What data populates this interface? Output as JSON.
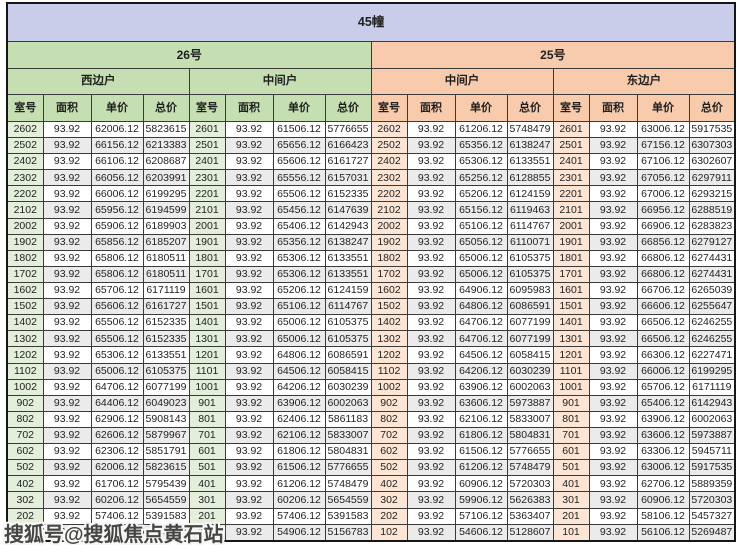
{
  "title": "45幢",
  "columns": [
    "室号",
    "面积",
    "单价",
    "总价"
  ],
  "watermark": {
    "text": "搜狐号@搜狐焦点黄石站"
  },
  "colors": {
    "title_bar": "#c9cde9",
    "building_26_header": "#c5dfb3",
    "building_26_room_cell": "#e3efda",
    "building_25_header": "#f8cbad",
    "building_25_room_cell": "#fce5d5",
    "alt_row": "#ebebeb",
    "grid_line": "#3a3a3a"
  },
  "buildings": [
    {
      "name": "26号",
      "theme": "green",
      "units": [
        {
          "name": "西边户",
          "rows": [
            [
              "2602",
              "93.92",
              "62006.12",
              "5823615"
            ],
            [
              "2502",
              "93.92",
              "66156.12",
              "6213383"
            ],
            [
              "2402",
              "93.92",
              "66106.12",
              "6208687"
            ],
            [
              "2302",
              "93.92",
              "66056.12",
              "6203991"
            ],
            [
              "2202",
              "93.92",
              "66006.12",
              "6199295"
            ],
            [
              "2102",
              "93.92",
              "65956.12",
              "6194599"
            ],
            [
              "2002",
              "93.92",
              "65906.12",
              "6189903"
            ],
            [
              "1902",
              "93.92",
              "65856.12",
              "6185207"
            ],
            [
              "1802",
              "93.92",
              "65806.12",
              "6180511"
            ],
            [
              "1702",
              "93.92",
              "65806.12",
              "6180511"
            ],
            [
              "1602",
              "93.92",
              "65706.12",
              "6171119"
            ],
            [
              "1502",
              "93.92",
              "65606.12",
              "6161727"
            ],
            [
              "1402",
              "93.92",
              "65506.12",
              "6152335"
            ],
            [
              "1302",
              "93.92",
              "65506.12",
              "6152335"
            ],
            [
              "1202",
              "93.92",
              "65306.12",
              "6133551"
            ],
            [
              "1102",
              "93.92",
              "65006.12",
              "6105375"
            ],
            [
              "1002",
              "93.92",
              "64706.12",
              "6077199"
            ],
            [
              "902",
              "93.92",
              "64406.12",
              "6049023"
            ],
            [
              "802",
              "93.92",
              "62906.12",
              "5908143"
            ],
            [
              "702",
              "93.92",
              "62606.12",
              "5879967"
            ],
            [
              "602",
              "93.92",
              "62306.12",
              "5851791"
            ],
            [
              "502",
              "93.92",
              "62006.12",
              "5823615"
            ],
            [
              "402",
              "93.92",
              "61706.12",
              "5795439"
            ],
            [
              "302",
              "93.92",
              "60206.12",
              "5654559"
            ],
            [
              "202",
              "93.92",
              "57406.12",
              "5391583"
            ],
            [
              "102",
              "93.92",
              "55406.12",
              "5203743"
            ]
          ]
        },
        {
          "name": "中间户",
          "rows": [
            [
              "2601",
              "93.92",
              "61506.12",
              "5776655"
            ],
            [
              "2501",
              "93.92",
              "65656.12",
              "6166423"
            ],
            [
              "2401",
              "93.92",
              "65606.12",
              "6161727"
            ],
            [
              "2301",
              "93.92",
              "65556.12",
              "6157031"
            ],
            [
              "2201",
              "93.92",
              "65506.12",
              "6152335"
            ],
            [
              "2101",
              "93.92",
              "65456.12",
              "6147639"
            ],
            [
              "2001",
              "93.92",
              "65406.12",
              "6142943"
            ],
            [
              "1901",
              "93.92",
              "65356.12",
              "6138247"
            ],
            [
              "1801",
              "93.92",
              "65306.12",
              "6133551"
            ],
            [
              "1701",
              "93.92",
              "65306.12",
              "6133551"
            ],
            [
              "1601",
              "93.92",
              "65206.12",
              "6124159"
            ],
            [
              "1501",
              "93.92",
              "65106.12",
              "6114767"
            ],
            [
              "1401",
              "93.92",
              "65006.12",
              "6105375"
            ],
            [
              "1301",
              "93.92",
              "65006.12",
              "6105375"
            ],
            [
              "1201",
              "93.92",
              "64806.12",
              "6086591"
            ],
            [
              "1101",
              "93.92",
              "64506.12",
              "6058415"
            ],
            [
              "1001",
              "93.92",
              "64206.12",
              "6030239"
            ],
            [
              "901",
              "93.92",
              "63906.12",
              "6002063"
            ],
            [
              "801",
              "93.92",
              "62406.12",
              "5861183"
            ],
            [
              "701",
              "93.92",
              "62106.12",
              "5833007"
            ],
            [
              "601",
              "93.92",
              "61806.12",
              "5804831"
            ],
            [
              "501",
              "93.92",
              "61506.12",
              "5776655"
            ],
            [
              "401",
              "93.92",
              "61206.12",
              "5748479"
            ],
            [
              "301",
              "93.92",
              "60206.12",
              "5654559"
            ],
            [
              "201",
              "93.92",
              "57406.12",
              "5391583"
            ],
            [
              "101",
              "93.92",
              "54906.12",
              "5156783"
            ]
          ]
        }
      ]
    },
    {
      "name": "25号",
      "theme": "peach",
      "units": [
        {
          "name": "中间户",
          "rows": [
            [
              "2602",
              "93.92",
              "61206.12",
              "5748479"
            ],
            [
              "2502",
              "93.92",
              "65356.12",
              "6138247"
            ],
            [
              "2402",
              "93.92",
              "65306.12",
              "6133551"
            ],
            [
              "2302",
              "93.92",
              "65256.12",
              "6128855"
            ],
            [
              "2202",
              "93.92",
              "65206.12",
              "6124159"
            ],
            [
              "2102",
              "93.92",
              "65156.12",
              "6119463"
            ],
            [
              "2002",
              "93.92",
              "65106.12",
              "6114767"
            ],
            [
              "1902",
              "93.92",
              "65056.12",
              "6110071"
            ],
            [
              "1802",
              "93.92",
              "65006.12",
              "6105375"
            ],
            [
              "1702",
              "93.92",
              "65006.12",
              "6105375"
            ],
            [
              "1602",
              "93.92",
              "64906.12",
              "6095983"
            ],
            [
              "1502",
              "93.92",
              "64806.12",
              "6086591"
            ],
            [
              "1402",
              "93.92",
              "64706.12",
              "6077199"
            ],
            [
              "1302",
              "93.92",
              "64706.12",
              "6077199"
            ],
            [
              "1202",
              "93.92",
              "64506.12",
              "6058415"
            ],
            [
              "1102",
              "93.92",
              "64206.12",
              "6030239"
            ],
            [
              "1002",
              "93.92",
              "63906.12",
              "6002063"
            ],
            [
              "902",
              "93.92",
              "63606.12",
              "5973887"
            ],
            [
              "802",
              "93.92",
              "62106.12",
              "5833007"
            ],
            [
              "702",
              "93.92",
              "61806.12",
              "5804831"
            ],
            [
              "602",
              "93.92",
              "61506.12",
              "5776655"
            ],
            [
              "502",
              "93.92",
              "61206.12",
              "5748479"
            ],
            [
              "402",
              "93.92",
              "60906.12",
              "5720303"
            ],
            [
              "302",
              "93.92",
              "59906.12",
              "5626383"
            ],
            [
              "202",
              "93.92",
              "57106.12",
              "5363407"
            ],
            [
              "102",
              "93.92",
              "54606.12",
              "5128607"
            ]
          ]
        },
        {
          "name": "东边户",
          "rows": [
            [
              "2601",
              "93.92",
              "63006.12",
              "5917535"
            ],
            [
              "2501",
              "93.92",
              "67156.12",
              "6307303"
            ],
            [
              "2401",
              "93.92",
              "67106.12",
              "6302607"
            ],
            [
              "2301",
              "93.92",
              "67056.12",
              "6297911"
            ],
            [
              "2201",
              "93.92",
              "67006.12",
              "6293215"
            ],
            [
              "2101",
              "93.92",
              "66956.12",
              "6288519"
            ],
            [
              "2001",
              "93.92",
              "66906.12",
              "6283823"
            ],
            [
              "1901",
              "93.92",
              "66856.12",
              "6279127"
            ],
            [
              "1801",
              "93.92",
              "66806.12",
              "6274431"
            ],
            [
              "1701",
              "93.92",
              "66806.12",
              "6274431"
            ],
            [
              "1601",
              "93.92",
              "66706.12",
              "6265039"
            ],
            [
              "1501",
              "93.92",
              "66606.12",
              "6255647"
            ],
            [
              "1401",
              "93.92",
              "66506.12",
              "6246255"
            ],
            [
              "1301",
              "93.92",
              "66506.12",
              "6246255"
            ],
            [
              "1201",
              "93.92",
              "66306.12",
              "6227471"
            ],
            [
              "1101",
              "93.92",
              "66006.12",
              "6199295"
            ],
            [
              "1001",
              "93.92",
              "65706.12",
              "6171119"
            ],
            [
              "901",
              "93.92",
              "65406.12",
              "6142943"
            ],
            [
              "801",
              "93.92",
              "63906.12",
              "6002063"
            ],
            [
              "701",
              "93.92",
              "63606.12",
              "5973887"
            ],
            [
              "601",
              "93.92",
              "63306.12",
              "5945711"
            ],
            [
              "501",
              "93.92",
              "63006.12",
              "5917535"
            ],
            [
              "401",
              "93.92",
              "62706.12",
              "5889359"
            ],
            [
              "301",
              "93.92",
              "60906.12",
              "5720303"
            ],
            [
              "201",
              "93.92",
              "58106.12",
              "5457327"
            ],
            [
              "101",
              "93.92",
              "56106.12",
              "5269487"
            ]
          ]
        }
      ]
    }
  ]
}
